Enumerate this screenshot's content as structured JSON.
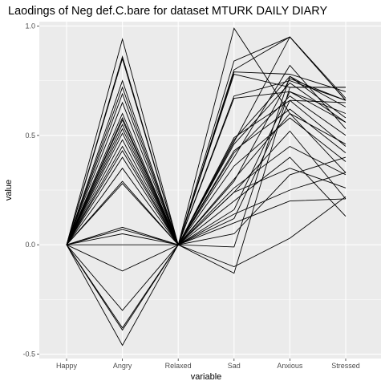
{
  "chart_data": {
    "type": "line",
    "title": "Laodings of Neg def.C.bare for dataset MTURK DAILY DIARY",
    "xlabel": "variable",
    "ylabel": "value",
    "categories": [
      "Happy",
      "Angry",
      "Relaxed",
      "Sad",
      "Anxious",
      "Stressed"
    ],
    "ylim": [
      -0.52,
      1.02
    ],
    "yticks": [
      -0.5,
      0.0,
      0.5,
      1.0
    ],
    "ytick_labels": [
      "-0.5",
      "0.0",
      "0.5",
      "1.0"
    ],
    "grid": true,
    "background": "#ebebeb",
    "grid_color": "#ffffff",
    "line_color": "#000000",
    "series": [
      {
        "values": [
          0,
          0.94,
          0,
          0.99,
          0.6,
          0.46
        ]
      },
      {
        "values": [
          0,
          0.86,
          0,
          0.84,
          0.95,
          0.67
        ]
      },
      {
        "values": [
          0,
          0.85,
          0,
          0.8,
          0.95,
          0.66
        ]
      },
      {
        "values": [
          0,
          0.75,
          0,
          0.79,
          0.78,
          0.7
        ]
      },
      {
        "values": [
          0,
          0.72,
          0,
          0.78,
          0.72,
          0.72
        ]
      },
      {
        "values": [
          0,
          0.69,
          0,
          0.68,
          0.75,
          0.66
        ]
      },
      {
        "values": [
          0,
          0.65,
          0,
          0.67,
          0.7,
          0.6
        ]
      },
      {
        "values": [
          0,
          0.6,
          0,
          0.48,
          0.77,
          0.63
        ]
      },
      {
        "values": [
          0,
          0.58,
          0,
          0.46,
          0.74,
          0.56
        ]
      },
      {
        "values": [
          0,
          0.57,
          0,
          0.42,
          0.68,
          0.5
        ]
      },
      {
        "values": [
          0,
          0.55,
          0,
          0.49,
          0.66,
          0.45
        ]
      },
      {
        "values": [
          0,
          0.53,
          0,
          0.43,
          0.62,
          0.42
        ]
      },
      {
        "values": [
          0,
          0.51,
          0,
          0.4,
          0.82,
          0.53
        ]
      },
      {
        "values": [
          0,
          0.48,
          0,
          0.36,
          0.58,
          0.38
        ]
      },
      {
        "values": [
          0,
          0.45,
          0,
          0.3,
          0.6,
          0.33
        ]
      },
      {
        "values": [
          0,
          0.43,
          0,
          0.24,
          0.52,
          0.21
        ]
      },
      {
        "values": [
          0,
          0.4,
          0,
          0.29,
          0.76,
          0.66
        ]
      },
      {
        "values": [
          0,
          0.35,
          0,
          0.26,
          0.45,
          0.32
        ]
      },
      {
        "values": [
          0,
          0.29,
          0,
          0.24,
          0.35,
          0.26
        ]
      },
      {
        "values": [
          0,
          0.28,
          0,
          0.2,
          0.4,
          0.13
        ]
      },
      {
        "values": [
          0,
          0.08,
          0,
          0.16,
          0.7,
          0.56
        ]
      },
      {
        "values": [
          0,
          0.07,
          0,
          0.14,
          0.25,
          0.33
        ]
      },
      {
        "values": [
          0,
          0.05,
          0,
          0.1,
          0.2,
          0.21
        ]
      },
      {
        "values": [
          0,
          0.0,
          0,
          0.05,
          0.32,
          0.4
        ]
      },
      {
        "values": [
          0,
          -0.12,
          0,
          -0.1,
          0.03,
          0.22
        ]
      },
      {
        "values": [
          0,
          -0.3,
          0,
          -0.13,
          0.72,
          0.72
        ]
      },
      {
        "values": [
          0,
          -0.38,
          0,
          0.12,
          0.66,
          0.65
        ]
      },
      {
        "values": [
          0,
          -0.39,
          0,
          -0.01,
          0.77,
          0.58
        ]
      },
      {
        "values": [
          0,
          -0.46,
          0,
          0.47,
          0.95,
          0.66
        ]
      }
    ]
  }
}
